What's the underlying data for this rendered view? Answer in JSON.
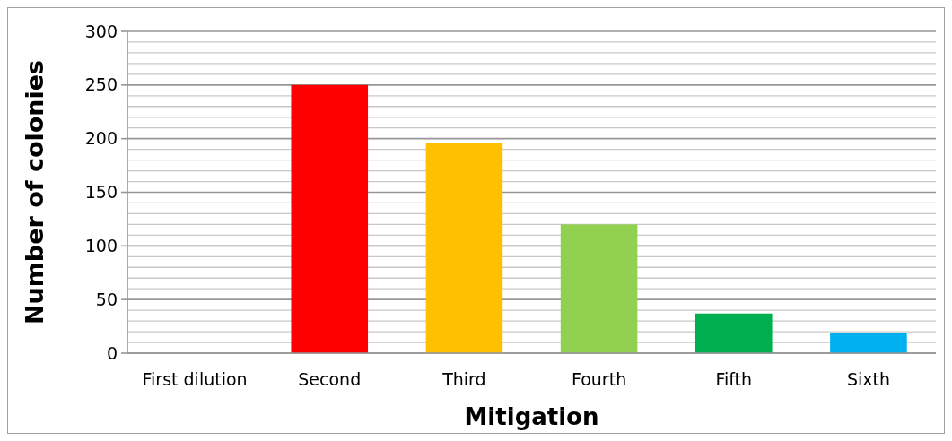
{
  "chart_data": {
    "type": "bar",
    "xlabel": "Mitigation",
    "ylabel": "Number of colonies",
    "categories": [
      "First dilution",
      "Second",
      "Third",
      "Fourth",
      "Fifth",
      "Sixth"
    ],
    "values": [
      0,
      250,
      196,
      120,
      37,
      19
    ],
    "colors": [
      "#ff0000",
      "#ff0000",
      "#ffc000",
      "#92d050",
      "#00b050",
      "#00b0f0"
    ],
    "ylim": [
      0,
      300
    ],
    "yticks": [
      0,
      {
        "value": 10,
        "label": null
      },
      {
        "value": 20,
        "label": null
      },
      {
        "value": 30,
        "label": null
      },
      {
        "value": 40,
        "label": null
      },
      50,
      {
        "value": 60,
        "label": null
      },
      {
        "value": 70,
        "label": null
      },
      {
        "value": 80,
        "label": null
      },
      {
        "value": 90,
        "label": null
      },
      100,
      {
        "value": 110,
        "label": null
      },
      {
        "value": 120,
        "label": null
      },
      {
        "value": 130,
        "label": null
      },
      {
        "value": 140,
        "label": null
      },
      150,
      {
        "value": 160,
        "label": null
      },
      {
        "value": 170,
        "label": null
      },
      {
        "value": 180,
        "label": null
      },
      {
        "value": 190,
        "label": null
      },
      200,
      {
        "value": 210,
        "label": null
      },
      {
        "value": 220,
        "label": null
      },
      {
        "value": 230,
        "label": null
      },
      {
        "value": 240,
        "label": null
      },
      250,
      {
        "value": 260,
        "label": null
      },
      {
        "value": 270,
        "label": null
      },
      {
        "value": 280,
        "label": null
      },
      {
        "value": 290,
        "label": null
      },
      300
    ],
    "grid": true
  }
}
